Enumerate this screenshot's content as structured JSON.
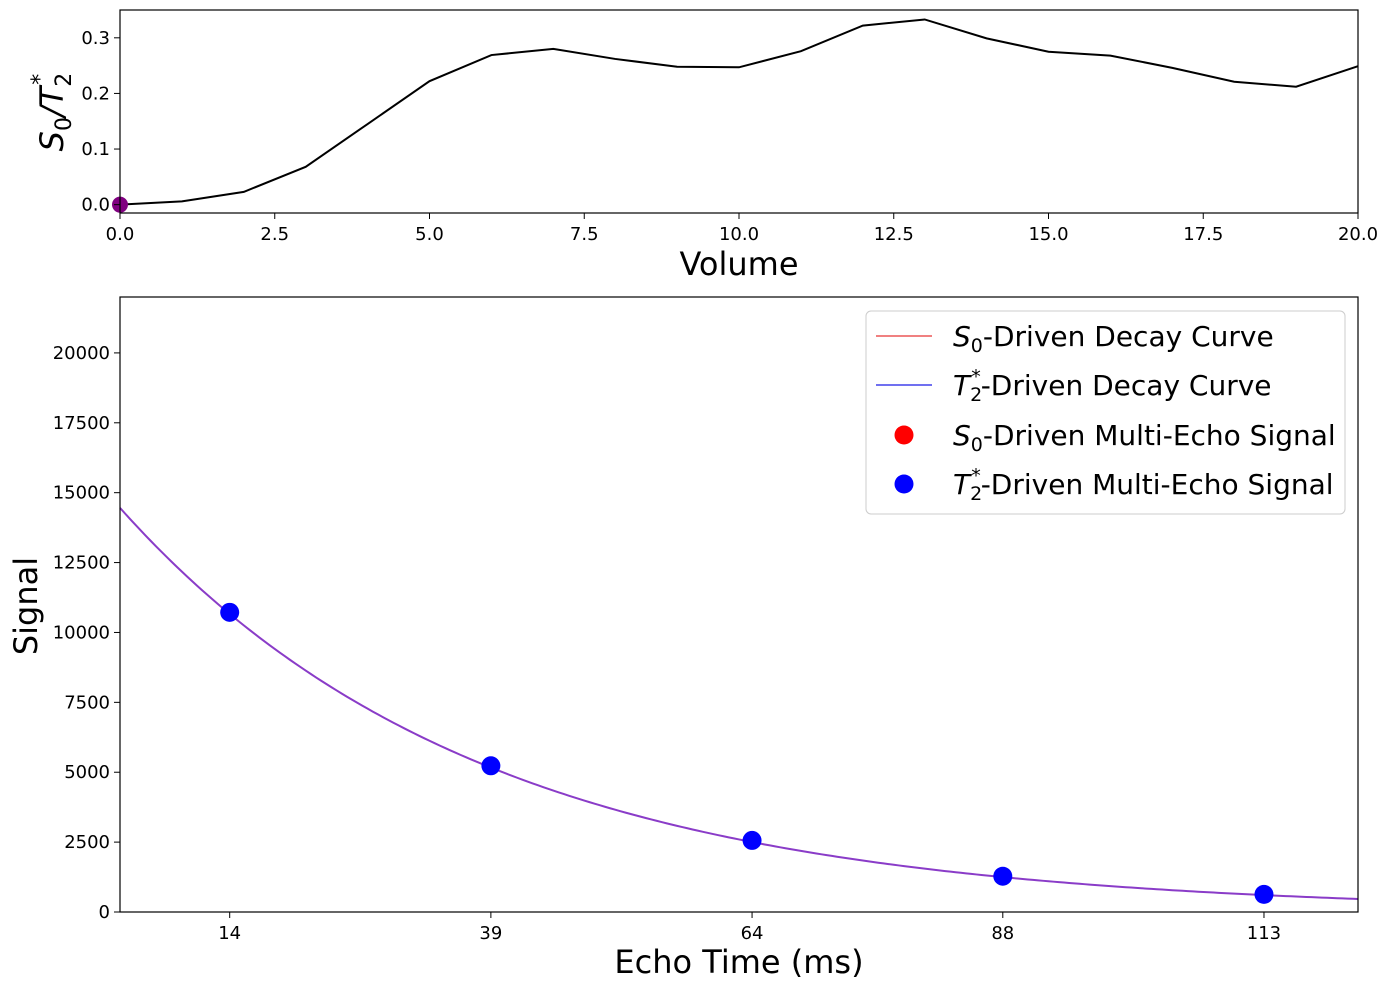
{
  "chart_data": [
    {
      "type": "line",
      "ylabel_parts": {
        "main": "S",
        "sub0": "0",
        "slash": "/T",
        "sub2": "2",
        "sup": "*"
      },
      "xlabel": "Volume",
      "xlim": [
        0,
        20
      ],
      "ylim": [
        -0.015,
        0.35
      ],
      "xticks": [
        "0.0",
        "2.5",
        "5.0",
        "7.5",
        "10.0",
        "12.5",
        "15.0",
        "17.5",
        "20.0"
      ],
      "yticks": [
        "0.0",
        "0.1",
        "0.2",
        "0.3"
      ],
      "x": [
        0,
        1,
        2,
        3,
        4,
        5,
        6,
        7,
        8,
        9,
        10,
        11,
        12,
        13,
        14,
        15,
        16,
        17,
        18,
        19,
        20
      ],
      "series": [
        {
          "values": [
            0.0,
            0.006,
            0.023,
            0.068,
            0.145,
            0.222,
            0.269,
            0.28,
            0.262,
            0.248,
            0.247,
            0.276,
            0.322,
            0.333,
            0.299,
            0.275,
            0.268,
            0.246,
            0.221,
            0.212,
            0.249
          ],
          "color": "#000000"
        }
      ],
      "marker": {
        "x": 0,
        "y": 0.0,
        "color": "#800080"
      },
      "grid": false
    },
    {
      "type": "line",
      "xlabel": "Echo Time (ms)",
      "ylabel": "Signal",
      "xlim": [
        3.5,
        122
      ],
      "ylim": [
        0,
        22000
      ],
      "xticks": [
        "14",
        "39",
        "64",
        "88",
        "113"
      ],
      "yticks": [
        "0",
        "2500",
        "5000",
        "7500",
        "10000",
        "12500",
        "15000",
        "17500",
        "20000"
      ],
      "curve": {
        "S0": 16000,
        "T2star_ms": 34.5,
        "color": "#8a3cc8"
      },
      "points": {
        "te": [
          14,
          39,
          64,
          88,
          113
        ],
        "signal": [
          10720,
          5230,
          2560,
          1280,
          630
        ],
        "color": "#0000ff"
      },
      "legend": {
        "position": "top-right",
        "entries": [
          {
            "prefix": "S",
            "sub": "0",
            "sup": "",
            "text": "-Driven Decay Curve",
            "kind": "line",
            "color": "#f08080"
          },
          {
            "prefix": "T",
            "sub": "2",
            "sup": "*",
            "text": "-Driven Decay Curve",
            "kind": "line",
            "color": "#7070f0"
          },
          {
            "prefix": "S",
            "sub": "0",
            "sup": "",
            "text": "-Driven Multi-Echo Signal",
            "kind": "dot",
            "color": "#ff0000"
          },
          {
            "prefix": "T",
            "sub": "2",
            "sup": "*",
            "text": "-Driven Multi-Echo Signal",
            "kind": "dot",
            "color": "#0000ff"
          }
        ]
      },
      "grid": false
    }
  ]
}
